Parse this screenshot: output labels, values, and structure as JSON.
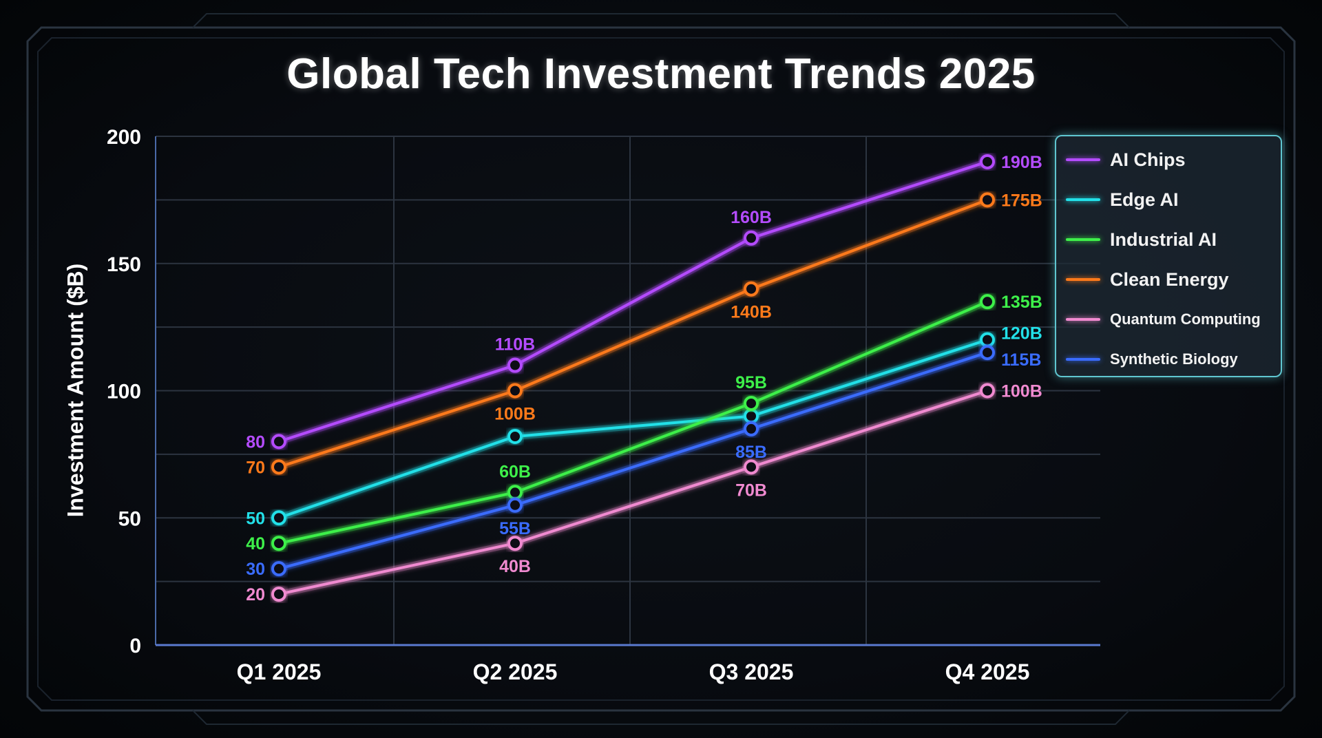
{
  "chart_data": {
    "type": "line",
    "title": "Global Tech Investment Trends 2025",
    "xlabel": "",
    "ylabel": "Investment Amount ($B)",
    "categories": [
      "Q1 2025",
      "Q2 2025",
      "Q3 2025",
      "Q4 2025"
    ],
    "ylim": [
      0,
      200
    ],
    "yticks": [
      "0",
      "50",
      "100",
      "150",
      "200"
    ],
    "grid": true,
    "legend_position": "top-right",
    "series": [
      {
        "name": "AI Chips",
        "color": "#b44cff",
        "values": [
          80,
          110,
          160,
          190
        ],
        "labels": [
          "80",
          "110B",
          "160B",
          "190B"
        ]
      },
      {
        "name": "Edge AI",
        "color": "#22e0e8",
        "values": [
          50,
          82,
          90,
          120
        ],
        "labels": [
          "50",
          "",
          "",
          "120B"
        ]
      },
      {
        "name": "Industrial AI",
        "color": "#3ef04a",
        "values": [
          40,
          60,
          95,
          135
        ],
        "labels": [
          "40",
          "60B",
          "95B",
          "135B"
        ]
      },
      {
        "name": "Clean Energy",
        "color": "#ff7a1a",
        "values": [
          70,
          100,
          140,
          175
        ],
        "labels": [
          "70",
          "100B",
          "140B",
          "175B"
        ]
      },
      {
        "name": "Quantum Computing",
        "color": "#f08ad0",
        "values": [
          20,
          40,
          70,
          100
        ],
        "labels": [
          "20",
          "40B",
          "70B",
          "100B"
        ]
      },
      {
        "name": "Synthetic Biology",
        "color": "#3a6cff",
        "values": [
          30,
          55,
          85,
          115
        ],
        "labels": [
          "30",
          "55B",
          "85B",
          "115B"
        ]
      }
    ]
  }
}
